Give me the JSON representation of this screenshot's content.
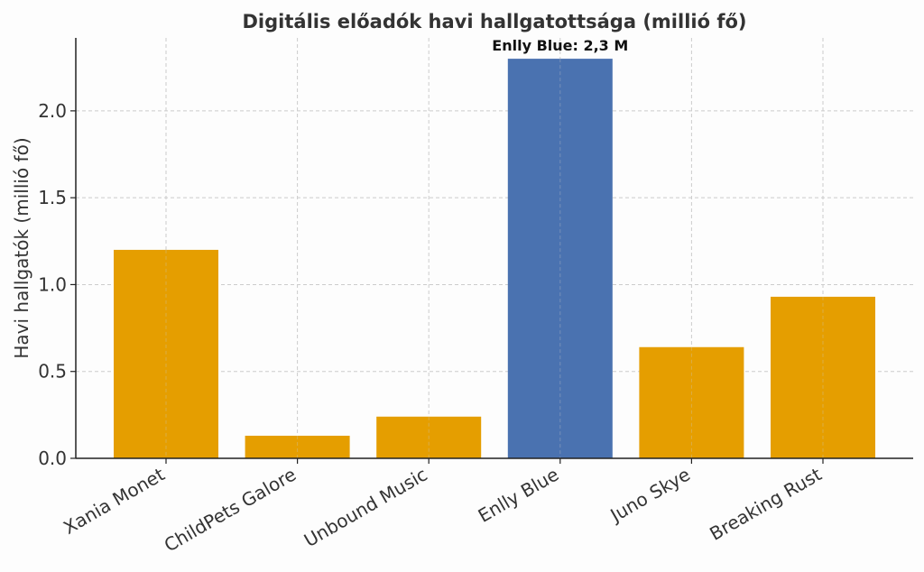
{
  "chart_data": {
    "type": "bar",
    "title": "Digitális előadók havi hallgatottsága (millió fő)",
    "xlabel": "",
    "ylabel": "Havi hallgatók (millió fő)",
    "categories": [
      "Xania Monet",
      "ChildPets Galore",
      "Unbound Music",
      "Enlly Blue",
      "Juno Skye",
      "Breaking Rust"
    ],
    "values": [
      1.2,
      0.13,
      0.24,
      2.3,
      0.64,
      0.93
    ],
    "ylim": [
      0,
      2.42
    ],
    "yticks": [
      0.0,
      0.5,
      1.0,
      1.5,
      2.0
    ],
    "ytick_labels": [
      "0.0",
      "0.5",
      "1.0",
      "1.5",
      "2.0"
    ],
    "grid": true,
    "colors": {
      "default": "#E59E00",
      "highlight": "#4A72B0"
    },
    "highlight_index": 3,
    "annotation": "Enlly Blue: 2,3 M"
  }
}
